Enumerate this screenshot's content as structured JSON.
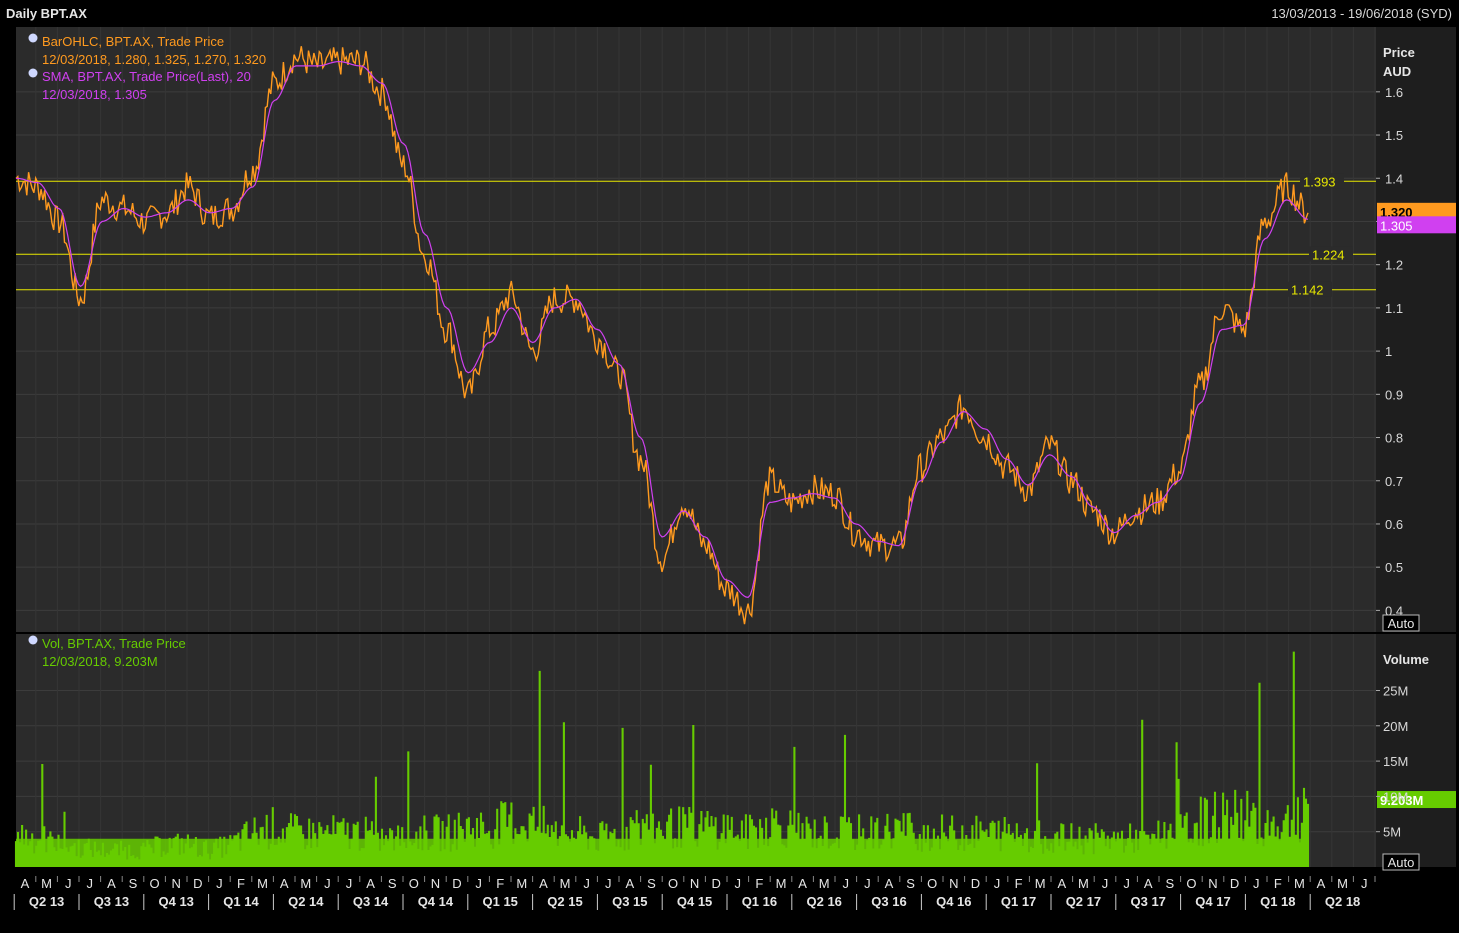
{
  "header": {
    "title": "Daily BPT.AX",
    "date_range": "13/03/2013 - 19/06/2018 (SYD)"
  },
  "colors": {
    "price": "#ff9a1f",
    "sma": "#d040f0",
    "volume": "#66cc00",
    "hline": "#e8e800",
    "price_badge": "#ff9a1f",
    "sma_badge": "#d040f0"
  },
  "price_panel": {
    "unit_label_1": "Price",
    "unit_label_2": "AUD",
    "auto_label": "Auto",
    "ylim": [
      0.35,
      1.75
    ],
    "y_ticks": [
      0.4,
      0.5,
      0.6,
      0.7,
      0.8,
      0.9,
      1,
      1.1,
      1.2,
      1.3,
      1.4,
      1.5,
      1.6
    ],
    "y_tick_labels": [
      "0.4",
      "0.5",
      "0.6",
      "0.7",
      "0.8",
      "0.9",
      "1",
      "1.1",
      "1.2",
      "1.3",
      "1.4",
      "1.5",
      "1.6"
    ],
    "legend": [
      {
        "line1": "BarOHLC, BPT.AX, Trade Price",
        "line2": "12/03/2018, 1.280, 1.325, 1.270, 1.320"
      },
      {
        "line1": "SMA, BPT.AX, Trade Price(Last),  20",
        "line2": "12/03/2018, 1.305"
      }
    ],
    "last_price_label": "1.320",
    "last_sma_label": "1.305",
    "last_price": 1.32,
    "last_sma": 1.305,
    "hlines": [
      {
        "value": 1.393,
        "label": "1.393"
      },
      {
        "value": 1.224,
        "label": "1.224"
      },
      {
        "value": 1.142,
        "label": "1.142"
      }
    ]
  },
  "volume_panel": {
    "unit_label": "Volume",
    "auto_label": "Auto",
    "legend_line1": "Vol, BPT.AX, Trade Price",
    "legend_line2": "12/03/2018, 9.203M",
    "last_volume_label": "9.203M",
    "last_volume": 9.203,
    "ylim": [
      0,
      33
    ],
    "y_ticks": [
      5,
      10,
      15,
      20,
      25
    ],
    "y_tick_labels": [
      "5M",
      "10M",
      "15M",
      "20M",
      "25M"
    ]
  },
  "x_axis": {
    "months": [
      "A",
      "M",
      "J",
      "J",
      "A",
      "S",
      "O",
      "N",
      "D",
      "J",
      "F",
      "M",
      "A",
      "M",
      "J",
      "J",
      "A",
      "S",
      "O",
      "N",
      "D",
      "J",
      "F",
      "M",
      "A",
      "M",
      "J",
      "J",
      "A",
      "S",
      "O",
      "N",
      "D",
      "J",
      "F",
      "M",
      "A",
      "M",
      "J",
      "J",
      "A",
      "S",
      "O",
      "N",
      "D",
      "J",
      "F",
      "M",
      "A",
      "M",
      "J",
      "J",
      "A",
      "S",
      "O",
      "N",
      "D",
      "J",
      "F",
      "M",
      "A",
      "M",
      "J"
    ],
    "quarters": [
      "Q2 13",
      "Q3 13",
      "Q4 13",
      "Q1 14",
      "Q2 14",
      "Q3 14",
      "Q4 14",
      "Q1 15",
      "Q2 15",
      "Q3 15",
      "Q4 15",
      "Q1 16",
      "Q2 16",
      "Q3 16",
      "Q4 16",
      "Q1 17",
      "Q2 17",
      "Q3 17",
      "Q4 17",
      "Q1 18",
      "Q2 18"
    ]
  },
  "chart_data": [
    {
      "type": "line",
      "title": "BarOHLC, BPT.AX, Trade Price",
      "ylabel": "Price AUD",
      "x_range": [
        "2013-03",
        "2018-03"
      ],
      "ylim": [
        0.35,
        1.75
      ],
      "series": [
        {
          "name": "BarOHLC, BPT.AX, Trade Price",
          "x": [
            "2013-03",
            "2013-04",
            "2013-05",
            "2013-06",
            "2013-07",
            "2013-08",
            "2013-09",
            "2013-10",
            "2013-11",
            "2013-12",
            "2014-01",
            "2014-02",
            "2014-03",
            "2014-04",
            "2014-05",
            "2014-06",
            "2014-07",
            "2014-08",
            "2014-09",
            "2014-10",
            "2014-11",
            "2014-12",
            "2015-01",
            "2015-02",
            "2015-03",
            "2015-04",
            "2015-05",
            "2015-06",
            "2015-07",
            "2015-08",
            "2015-09",
            "2015-10",
            "2015-11",
            "2015-12",
            "2016-01",
            "2016-02",
            "2016-03",
            "2016-04",
            "2016-05",
            "2016-06",
            "2016-07",
            "2016-08",
            "2016-09",
            "2016-10",
            "2016-11",
            "2016-12",
            "2017-01",
            "2017-02",
            "2017-03",
            "2017-04",
            "2017-05",
            "2017-06",
            "2017-07",
            "2017-08",
            "2017-09",
            "2017-10",
            "2017-11",
            "2017-12",
            "2018-01",
            "2018-02",
            "2018-03"
          ],
          "values": [
            1.4,
            1.38,
            1.3,
            1.12,
            1.35,
            1.33,
            1.3,
            1.32,
            1.38,
            1.31,
            1.33,
            1.42,
            1.62,
            1.68,
            1.66,
            1.67,
            1.67,
            1.6,
            1.43,
            1.22,
            1.05,
            0.9,
            1.05,
            1.13,
            1.0,
            1.12,
            1.12,
            1.03,
            0.95,
            0.75,
            0.52,
            0.65,
            0.55,
            0.45,
            0.4,
            0.7,
            0.65,
            0.68,
            0.67,
            0.58,
            0.55,
            0.55,
            0.73,
            0.8,
            0.87,
            0.8,
            0.73,
            0.68,
            0.78,
            0.7,
            0.63,
            0.58,
            0.63,
            0.65,
            0.72,
            0.92,
            1.1,
            1.05,
            1.3,
            1.38,
            1.32
          ]
        },
        {
          "name": "SMA, BPT.AX, Trade Price(Last),  20",
          "x": [
            "2013-03",
            "2013-04",
            "2013-05",
            "2013-06",
            "2013-07",
            "2013-08",
            "2013-09",
            "2013-10",
            "2013-11",
            "2013-12",
            "2014-01",
            "2014-02",
            "2014-03",
            "2014-04",
            "2014-05",
            "2014-06",
            "2014-07",
            "2014-08",
            "2014-09",
            "2014-10",
            "2014-11",
            "2014-12",
            "2015-01",
            "2015-02",
            "2015-03",
            "2015-04",
            "2015-05",
            "2015-06",
            "2015-07",
            "2015-08",
            "2015-09",
            "2015-10",
            "2015-11",
            "2015-12",
            "2016-01",
            "2016-02",
            "2016-03",
            "2016-04",
            "2016-05",
            "2016-06",
            "2016-07",
            "2016-08",
            "2016-09",
            "2016-10",
            "2016-11",
            "2016-12",
            "2017-01",
            "2017-02",
            "2017-03",
            "2017-04",
            "2017-05",
            "2017-06",
            "2017-07",
            "2017-08",
            "2017-09",
            "2017-10",
            "2017-11",
            "2017-12",
            "2018-01",
            "2018-02",
            "2018-03"
          ],
          "values": [
            1.4,
            1.39,
            1.33,
            1.15,
            1.3,
            1.33,
            1.31,
            1.32,
            1.35,
            1.32,
            1.33,
            1.38,
            1.58,
            1.66,
            1.66,
            1.67,
            1.66,
            1.62,
            1.48,
            1.27,
            1.1,
            0.95,
            1.02,
            1.1,
            1.02,
            1.1,
            1.12,
            1.05,
            0.97,
            0.8,
            0.57,
            0.63,
            0.57,
            0.47,
            0.43,
            0.65,
            0.66,
            0.67,
            0.66,
            0.6,
            0.56,
            0.55,
            0.7,
            0.79,
            0.86,
            0.82,
            0.75,
            0.69,
            0.76,
            0.71,
            0.64,
            0.58,
            0.62,
            0.65,
            0.7,
            0.88,
            1.05,
            1.06,
            1.26,
            1.35,
            1.305
          ]
        }
      ],
      "annotations": [
        {
          "type": "hline",
          "value": 1.393,
          "label": "1.393"
        },
        {
          "type": "hline",
          "value": 1.224,
          "label": "1.224"
        },
        {
          "type": "hline",
          "value": 1.142,
          "label": "1.142"
        }
      ]
    },
    {
      "type": "bar",
      "title": "Vol, BPT.AX, Trade Price",
      "ylabel": "Volume",
      "x_range": [
        "2013-03",
        "2018-03"
      ],
      "ylim": [
        0,
        33
      ],
      "series": [
        {
          "name": "Vol, BPT.AX, Trade Price",
          "x": [
            "2013-03",
            "2013-04",
            "2013-05",
            "2013-06",
            "2013-07",
            "2013-08",
            "2013-09",
            "2013-10",
            "2013-11",
            "2013-12",
            "2014-01",
            "2014-02",
            "2014-03",
            "2014-04",
            "2014-05",
            "2014-06",
            "2014-07",
            "2014-08",
            "2014-09",
            "2014-10",
            "2014-11",
            "2014-12",
            "2015-01",
            "2015-02",
            "2015-03",
            "2015-04",
            "2015-05",
            "2015-06",
            "2015-07",
            "2015-08",
            "2015-09",
            "2015-10",
            "2015-11",
            "2015-12",
            "2016-01",
            "2016-02",
            "2016-03",
            "2016-04",
            "2016-05",
            "2016-06",
            "2016-07",
            "2016-08",
            "2016-09",
            "2016-10",
            "2016-11",
            "2016-12",
            "2017-01",
            "2017-02",
            "2017-03",
            "2017-04",
            "2017-05",
            "2017-06",
            "2017-07",
            "2017-08",
            "2017-09",
            "2017-10",
            "2017-11",
            "2017-12",
            "2018-01",
            "2018-02",
            "2018-03"
          ],
          "values": [
            6,
            5,
            4,
            3.5,
            3,
            3,
            3,
            4,
            4,
            3,
            4,
            6,
            7,
            6,
            6,
            6,
            6,
            5,
            5,
            6,
            6,
            7,
            7,
            8,
            8,
            6,
            6,
            5,
            6,
            7,
            7,
            7,
            7,
            7,
            6,
            8,
            7,
            6,
            6,
            6,
            6,
            7,
            6,
            6,
            6,
            6,
            6,
            6,
            5,
            5,
            5,
            5,
            5,
            6,
            6,
            8,
            9,
            9,
            8,
            8,
            9.203
          ]
        }
      ]
    }
  ]
}
